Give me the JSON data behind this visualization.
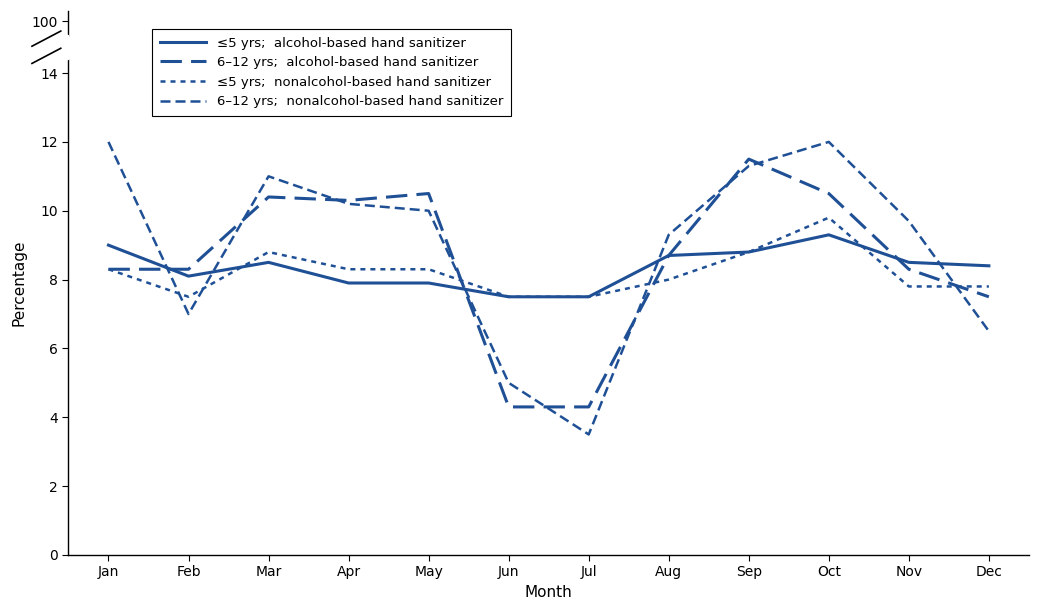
{
  "months": [
    "Jan",
    "Feb",
    "Mar",
    "Apr",
    "May",
    "Jun",
    "Jul",
    "Aug",
    "Sep",
    "Oct",
    "Nov",
    "Dec"
  ],
  "le5_alcohol": [
    9.0,
    8.1,
    8.5,
    7.9,
    7.9,
    7.5,
    7.5,
    8.7,
    8.8,
    9.3,
    8.5,
    8.4
  ],
  "g6_12_alcohol": [
    8.3,
    8.3,
    10.4,
    10.3,
    10.5,
    4.3,
    4.3,
    8.7,
    11.5,
    10.5,
    8.3,
    7.5
  ],
  "le5_nonalcohol": [
    8.3,
    7.5,
    8.8,
    8.3,
    8.3,
    7.5,
    7.5,
    8.0,
    8.8,
    9.8,
    7.8,
    7.8
  ],
  "g6_12_nonalcohol": [
    12.0,
    7.0,
    11.0,
    10.2,
    10.0,
    5.0,
    3.5,
    9.3,
    11.3,
    12.0,
    9.7,
    6.5
  ],
  "color": "#1f5096",
  "ylabel": "Percentage",
  "xlabel": "Month",
  "legend_labels": [
    "≤5 yrs;  alcohol-based hand sanitizer",
    "6–12 yrs;  alcohol-based hand sanitizer",
    "≤5 yrs;  nonalcohol-based hand sanitizer",
    "6–12 yrs;  nonalcohol-based hand sanitizer"
  ]
}
